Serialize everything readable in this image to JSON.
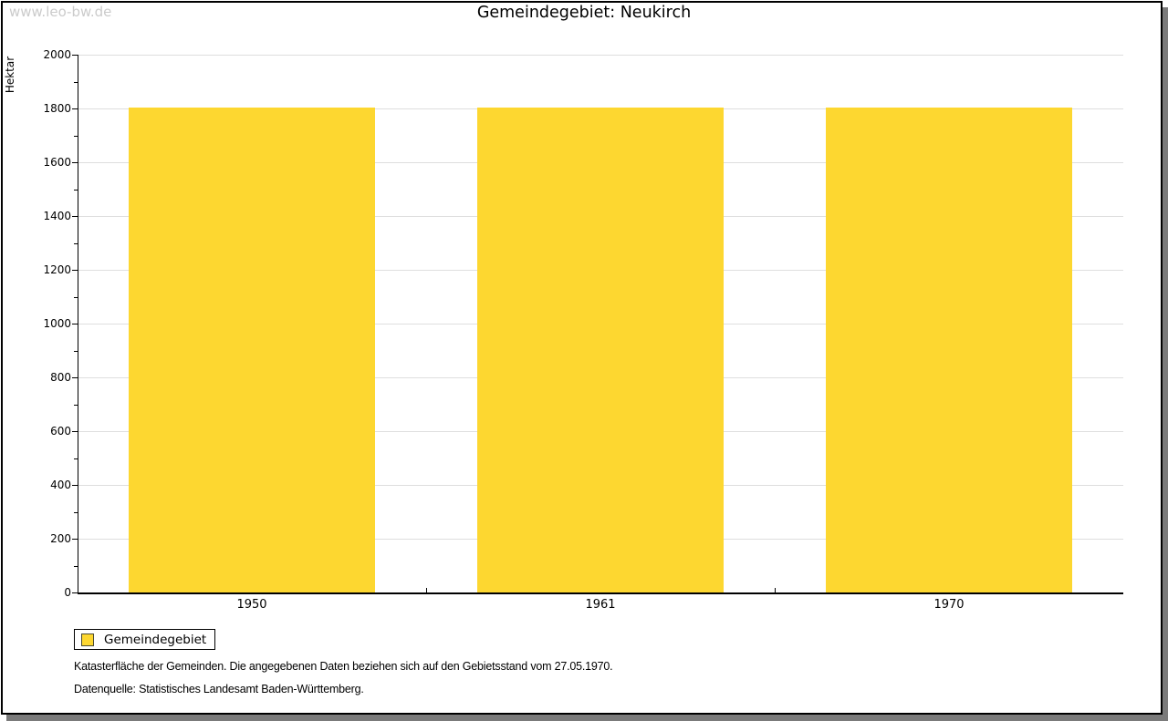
{
  "watermark": "www.leo-bw.de",
  "chart_data": {
    "type": "bar",
    "title": "Gemeindegebiet: Neukirch",
    "categories": [
      "1950",
      "1961",
      "1970"
    ],
    "series": [
      {
        "name": "Gemeindegebiet",
        "values": [
          1803,
          1803,
          1803
        ]
      }
    ],
    "xlabel": "",
    "ylabel": "Hektar",
    "ylim": [
      0,
      2000
    ],
    "ytick_step": 200,
    "yminor_step": 100,
    "grid": true,
    "legend_position": "bottom-left",
    "bar_color": "#fdd730",
    "grid_color": "#dedede"
  },
  "legend": {
    "items": [
      {
        "label": "Gemeindegebiet",
        "color": "#fdd730"
      }
    ]
  },
  "footer": {
    "line1": "Katasterfläche der Gemeinden. Die angegebenen Daten beziehen sich auf den Gebietsstand vom 27.05.1970.",
    "line2": "Datenquelle: Statistisches Landesamt Baden-Württemberg."
  }
}
